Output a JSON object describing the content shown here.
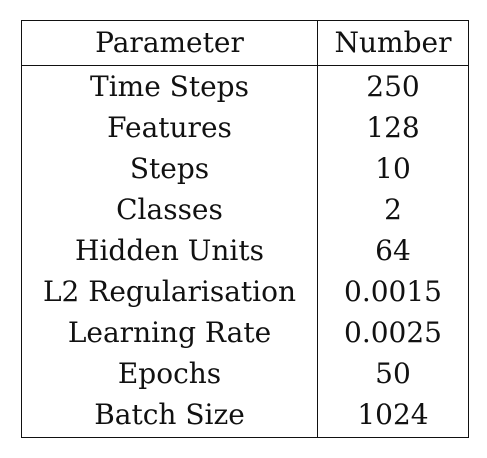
{
  "table": {
    "headers": {
      "parameter": "Parameter",
      "number": "Number"
    },
    "rows": [
      {
        "parameter": "Time Steps",
        "number": "250"
      },
      {
        "parameter": "Features",
        "number": "128"
      },
      {
        "parameter": "Steps",
        "number": "10"
      },
      {
        "parameter": "Classes",
        "number": "2"
      },
      {
        "parameter": "Hidden Units",
        "number": "64"
      },
      {
        "parameter": "L2 Regularisation",
        "number": "0.0015"
      },
      {
        "parameter": "Learning Rate",
        "number": "0.0025"
      },
      {
        "parameter": "Epochs",
        "number": "50"
      },
      {
        "parameter": "Batch Size",
        "number": "1024"
      }
    ]
  }
}
